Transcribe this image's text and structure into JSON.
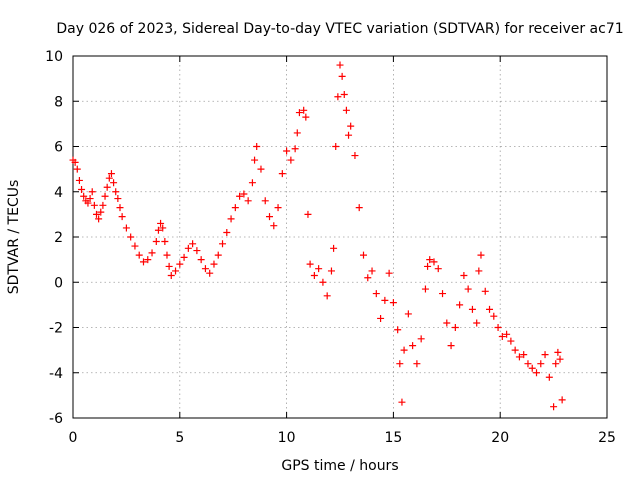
{
  "colors": {
    "series": "#ff0000",
    "axes": "#000000",
    "grid": "#a0a0a0",
    "background": "#ffffff"
  },
  "chart_data": {
    "type": "scatter",
    "title": "Day 026 of 2023, Sidereal Day-to-day VTEC variation (SDTVAR) for receiver ac71",
    "xlabel": "GPS time / hours",
    "ylabel": "SDTVAR / TECUs",
    "xlim": [
      0,
      25
    ],
    "ylim": [
      -6,
      10
    ],
    "xticks": [
      0,
      5,
      10,
      15,
      20,
      25
    ],
    "yticks": [
      -6,
      -4,
      -2,
      0,
      2,
      4,
      6,
      8,
      10
    ],
    "grid": true,
    "marker": "plus",
    "series": [
      {
        "name": "SDTVAR",
        "color": "#ff0000",
        "points": [
          [
            0.0,
            5.4
          ],
          [
            0.1,
            5.3
          ],
          [
            0.2,
            5.0
          ],
          [
            0.3,
            4.5
          ],
          [
            0.4,
            4.1
          ],
          [
            0.5,
            3.8
          ],
          [
            0.6,
            3.6
          ],
          [
            0.7,
            3.5
          ],
          [
            0.8,
            3.7
          ],
          [
            0.9,
            4.0
          ],
          [
            1.0,
            3.4
          ],
          [
            1.1,
            3.0
          ],
          [
            1.2,
            2.8
          ],
          [
            1.3,
            3.1
          ],
          [
            1.4,
            3.4
          ],
          [
            1.5,
            3.8
          ],
          [
            1.6,
            4.2
          ],
          [
            1.7,
            4.6
          ],
          [
            1.8,
            4.8
          ],
          [
            1.9,
            4.4
          ],
          [
            2.0,
            4.0
          ],
          [
            2.1,
            3.7
          ],
          [
            2.2,
            3.3
          ],
          [
            2.3,
            2.9
          ],
          [
            2.5,
            2.4
          ],
          [
            2.7,
            2.0
          ],
          [
            2.9,
            1.6
          ],
          [
            3.1,
            1.2
          ],
          [
            3.3,
            0.9
          ],
          [
            3.5,
            1.0
          ],
          [
            3.7,
            1.3
          ],
          [
            3.9,
            1.8
          ],
          [
            4.0,
            2.3
          ],
          [
            4.1,
            2.6
          ],
          [
            4.2,
            2.4
          ],
          [
            4.3,
            1.8
          ],
          [
            4.4,
            1.2
          ],
          [
            4.5,
            0.7
          ],
          [
            4.6,
            0.3
          ],
          [
            4.8,
            0.5
          ],
          [
            5.0,
            0.8
          ],
          [
            5.2,
            1.1
          ],
          [
            5.4,
            1.5
          ],
          [
            5.6,
            1.7
          ],
          [
            5.8,
            1.4
          ],
          [
            6.0,
            1.0
          ],
          [
            6.2,
            0.6
          ],
          [
            6.4,
            0.4
          ],
          [
            6.6,
            0.8
          ],
          [
            6.8,
            1.2
          ],
          [
            7.0,
            1.7
          ],
          [
            7.2,
            2.2
          ],
          [
            7.4,
            2.8
          ],
          [
            7.6,
            3.3
          ],
          [
            7.8,
            3.8
          ],
          [
            8.0,
            3.9
          ],
          [
            8.2,
            3.6
          ],
          [
            8.4,
            4.4
          ],
          [
            8.5,
            5.4
          ],
          [
            8.6,
            6.0
          ],
          [
            8.8,
            5.0
          ],
          [
            9.0,
            3.6
          ],
          [
            9.2,
            2.9
          ],
          [
            9.4,
            2.5
          ],
          [
            9.6,
            3.3
          ],
          [
            9.8,
            4.8
          ],
          [
            10.0,
            5.8
          ],
          [
            10.2,
            5.4
          ],
          [
            10.4,
            5.9
          ],
          [
            10.5,
            6.6
          ],
          [
            10.6,
            7.5
          ],
          [
            10.8,
            7.6
          ],
          [
            10.9,
            7.3
          ],
          [
            11.0,
            3.0
          ],
          [
            11.1,
            0.8
          ],
          [
            11.3,
            0.3
          ],
          [
            11.5,
            0.6
          ],
          [
            11.7,
            0.0
          ],
          [
            11.9,
            -0.6
          ],
          [
            12.1,
            0.5
          ],
          [
            12.2,
            1.5
          ],
          [
            12.3,
            6.0
          ],
          [
            12.4,
            8.2
          ],
          [
            12.5,
            9.6
          ],
          [
            12.6,
            9.1
          ],
          [
            12.7,
            8.3
          ],
          [
            12.8,
            7.6
          ],
          [
            12.9,
            6.5
          ],
          [
            13.0,
            6.9
          ],
          [
            13.2,
            5.6
          ],
          [
            13.4,
            3.3
          ],
          [
            13.6,
            1.2
          ],
          [
            13.8,
            0.2
          ],
          [
            14.0,
            0.5
          ],
          [
            14.2,
            -0.5
          ],
          [
            14.4,
            -1.6
          ],
          [
            14.6,
            -0.8
          ],
          [
            14.8,
            0.4
          ],
          [
            15.0,
            -0.9
          ],
          [
            15.2,
            -2.1
          ],
          [
            15.3,
            -3.6
          ],
          [
            15.4,
            -5.3
          ],
          [
            15.5,
            -3.0
          ],
          [
            15.7,
            -1.4
          ],
          [
            15.9,
            -2.8
          ],
          [
            16.1,
            -3.6
          ],
          [
            16.3,
            -2.5
          ],
          [
            16.5,
            -0.3
          ],
          [
            16.6,
            0.7
          ],
          [
            16.7,
            1.0
          ],
          [
            16.9,
            0.9
          ],
          [
            17.1,
            0.6
          ],
          [
            17.3,
            -0.5
          ],
          [
            17.5,
            -1.8
          ],
          [
            17.7,
            -2.8
          ],
          [
            17.9,
            -2.0
          ],
          [
            18.1,
            -1.0
          ],
          [
            18.3,
            0.3
          ],
          [
            18.5,
            -0.3
          ],
          [
            18.7,
            -1.2
          ],
          [
            18.9,
            -1.8
          ],
          [
            19.0,
            0.5
          ],
          [
            19.1,
            1.2
          ],
          [
            19.3,
            -0.4
          ],
          [
            19.5,
            -1.2
          ],
          [
            19.7,
            -1.5
          ],
          [
            19.9,
            -2.0
          ],
          [
            20.1,
            -2.4
          ],
          [
            20.3,
            -2.3
          ],
          [
            20.5,
            -2.6
          ],
          [
            20.7,
            -3.0
          ],
          [
            20.9,
            -3.3
          ],
          [
            21.1,
            -3.2
          ],
          [
            21.3,
            -3.6
          ],
          [
            21.5,
            -3.8
          ],
          [
            21.7,
            -4.0
          ],
          [
            21.9,
            -3.6
          ],
          [
            22.1,
            -3.2
          ],
          [
            22.3,
            -4.2
          ],
          [
            22.5,
            -5.5
          ],
          [
            22.6,
            -3.6
          ],
          [
            22.7,
            -3.1
          ],
          [
            22.8,
            -3.4
          ],
          [
            22.9,
            -5.2
          ]
        ]
      }
    ]
  }
}
